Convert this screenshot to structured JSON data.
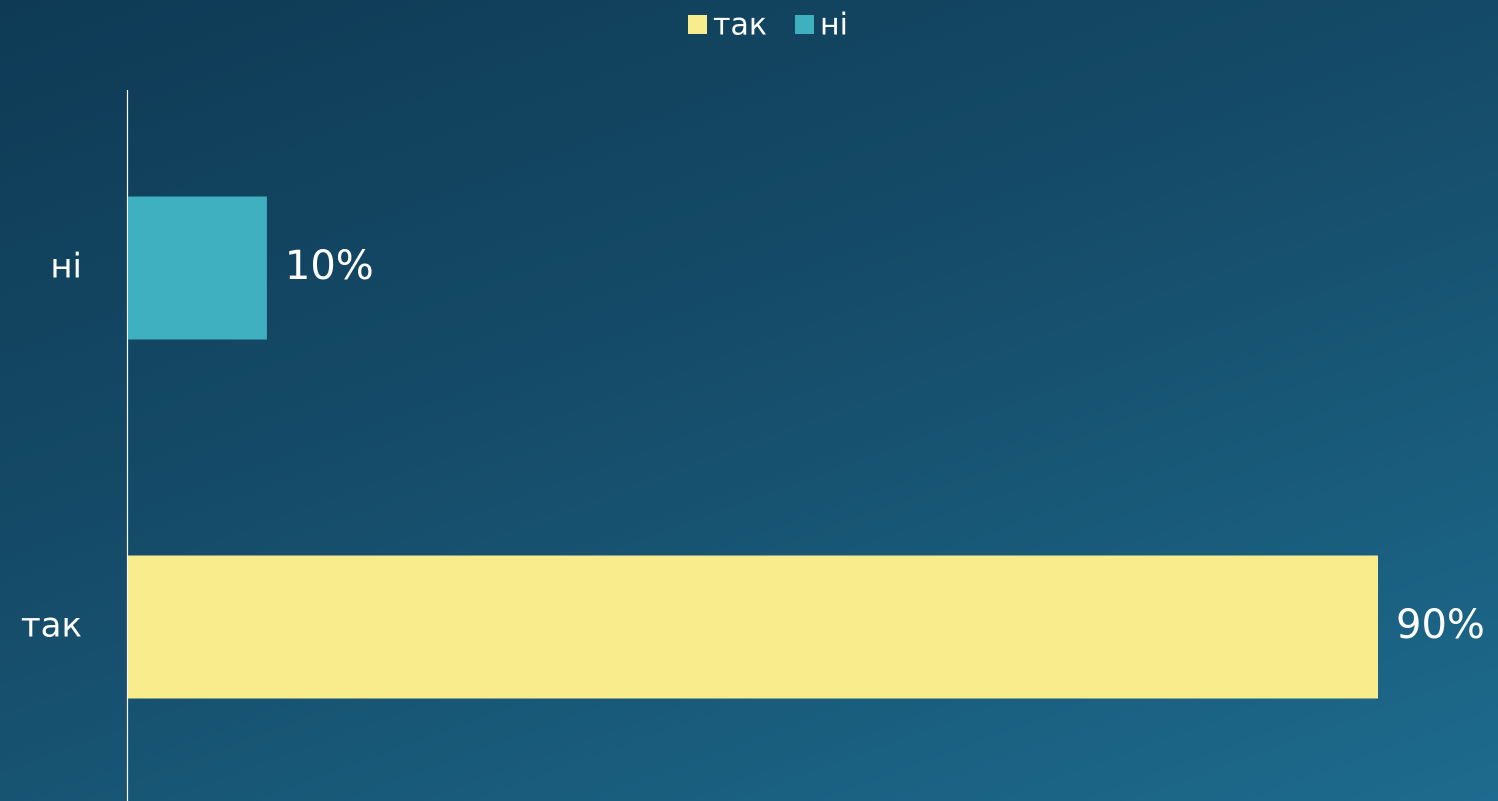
{
  "chart_data": {
    "type": "bar",
    "orientation": "horizontal",
    "categories": [
      "так",
      "ні"
    ],
    "series": [
      {
        "name": "так",
        "color": "#f8ec8c",
        "values": [
          90,
          null
        ],
        "value_labels": [
          "90%",
          null
        ]
      },
      {
        "name": "ні",
        "color": "#3fb0bf",
        "values": [
          null,
          10
        ],
        "value_labels": [
          null,
          "10%"
        ]
      }
    ],
    "legend": "top"
  }
}
